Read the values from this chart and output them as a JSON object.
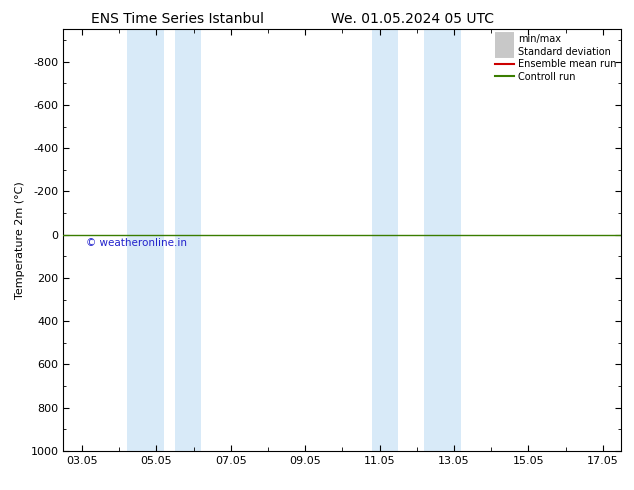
{
  "title_left": "ENS Time Series Istanbul",
  "title_right": "We. 01.05.2024 05 UTC",
  "ylabel": "Temperature 2m (°C)",
  "ylim_bottom": 1000,
  "ylim_top": -950,
  "yticks": [
    -800,
    -600,
    -400,
    -200,
    0,
    200,
    400,
    600,
    800,
    1000
  ],
  "xtick_labels": [
    "03.05",
    "05.05",
    "07.05",
    "09.05",
    "11.05",
    "13.05",
    "15.05",
    "17.05"
  ],
  "xtick_positions": [
    3,
    5,
    7,
    9,
    11,
    13,
    15,
    17
  ],
  "xlim": [
    2.5,
    17.5
  ],
  "shaded_bands": [
    {
      "start": 4.2,
      "end": 5.2
    },
    {
      "start": 5.5,
      "end": 6.2
    },
    {
      "start": 10.8,
      "end": 11.5
    },
    {
      "start": 12.2,
      "end": 13.2
    }
  ],
  "control_run_y": 0,
  "control_run_color": "#3a7d00",
  "ensemble_mean_color": "#cc0000",
  "minmax_color": "#c8c8c8",
  "std_dev_color": "#c8c8c8",
  "watermark_text": "© weatheronline.in",
  "watermark_color": "#2222cc",
  "legend_labels": [
    "min/max",
    "Standard deviation",
    "Ensemble mean run",
    "Controll run"
  ],
  "legend_line_colors": [
    "#c8c8c8",
    "#c8c8c8",
    "#cc0000",
    "#3a7d00"
  ],
  "background_color": "#ffffff",
  "band_color": "#d8eaf8",
  "figsize": [
    6.34,
    4.9
  ],
  "dpi": 100,
  "title_fontsize": 10,
  "axis_fontsize": 8,
  "ylabel_fontsize": 8
}
